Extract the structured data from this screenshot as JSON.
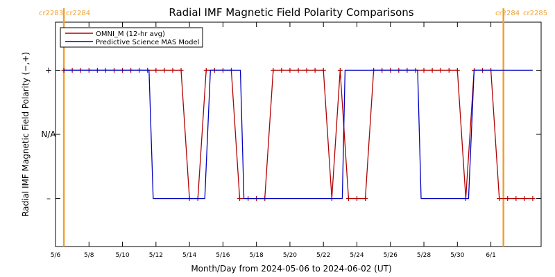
{
  "chart_data": {
    "type": "line",
    "title": "Radial IMF Magnetic Field Polarity Comparisons",
    "xlabel": "Month/Day from 2024-05-06 to 2024-06-02 (UT)",
    "ylabel": "Radial IMF Magnetic Field Polarity (−,+)",
    "x_range": [
      "2024-05-06",
      "2024-06-02"
    ],
    "y_range": [
      -1.75,
      1.75
    ],
    "y_ticks": [
      {
        "value": 1,
        "label": "+"
      },
      {
        "value": 0,
        "label": "N/A"
      },
      {
        "value": -1,
        "label": "–"
      }
    ],
    "x_ticks": [
      {
        "date": "2024-05-06",
        "label": "5/6"
      },
      {
        "date": "2024-05-08",
        "label": "5/8"
      },
      {
        "date": "2024-05-10",
        "label": "5/10"
      },
      {
        "date": "2024-05-12",
        "label": "5/12"
      },
      {
        "date": "2024-05-14",
        "label": "5/14"
      },
      {
        "date": "2024-05-16",
        "label": "5/16"
      },
      {
        "date": "2024-05-18",
        "label": "5/18"
      },
      {
        "date": "2024-05-20",
        "label": "5/20"
      },
      {
        "date": "2024-05-22",
        "label": "5/22"
      },
      {
        "date": "2024-05-24",
        "label": "5/24"
      },
      {
        "date": "2024-05-26",
        "label": "5/26"
      },
      {
        "date": "2024-05-28",
        "label": "5/28"
      },
      {
        "date": "2024-05-30",
        "label": "5/30"
      },
      {
        "date": "2024-06-01",
        "label": "6/1"
      }
    ],
    "carrington_markers": [
      {
        "date": "2024-05-06T12:00",
        "left_label": "cr2283",
        "right_label": "cr2284",
        "label_position": "top-left"
      },
      {
        "date": "2024-06-01T18:00",
        "left_label": "cr2284",
        "right_label": "cr2285",
        "label_position": "top-right"
      }
    ],
    "legend": {
      "position": "top-left"
    },
    "series": [
      {
        "name": "OMNI_M (12-hr avg)",
        "color": "#b00000",
        "marker": "plus",
        "points": [
          [
            "2024-05-06T12:00",
            1
          ],
          [
            "2024-05-07T00:00",
            1
          ],
          [
            "2024-05-07T12:00",
            1
          ],
          [
            "2024-05-08T00:00",
            1
          ],
          [
            "2024-05-08T12:00",
            1
          ],
          [
            "2024-05-09T00:00",
            1
          ],
          [
            "2024-05-09T12:00",
            1
          ],
          [
            "2024-05-10T00:00",
            1
          ],
          [
            "2024-05-10T12:00",
            1
          ],
          [
            "2024-05-11T00:00",
            1
          ],
          [
            "2024-05-11T12:00",
            1
          ],
          [
            "2024-05-12T00:00",
            1
          ],
          [
            "2024-05-12T12:00",
            1
          ],
          [
            "2024-05-13T00:00",
            1
          ],
          [
            "2024-05-13T12:00",
            1
          ],
          [
            "2024-05-14T00:00",
            -1
          ],
          [
            "2024-05-14T12:00",
            -1
          ],
          [
            "2024-05-15T00:00",
            1
          ],
          [
            "2024-05-15T12:00",
            1
          ],
          [
            "2024-05-16T00:00",
            1
          ],
          [
            "2024-05-16T12:00",
            1
          ],
          [
            "2024-05-17T00:00",
            -1
          ],
          [
            "2024-05-17T12:00",
            -1
          ],
          [
            "2024-05-18T00:00",
            -1
          ],
          [
            "2024-05-18T12:00",
            -1
          ],
          [
            "2024-05-19T00:00",
            1
          ],
          [
            "2024-05-19T12:00",
            1
          ],
          [
            "2024-05-20T00:00",
            1
          ],
          [
            "2024-05-20T12:00",
            1
          ],
          [
            "2024-05-21T00:00",
            1
          ],
          [
            "2024-05-21T12:00",
            1
          ],
          [
            "2024-05-22T00:00",
            1
          ],
          [
            "2024-05-22T12:00",
            -1
          ],
          [
            "2024-05-23T00:00",
            1
          ],
          [
            "2024-05-23T12:00",
            -1
          ],
          [
            "2024-05-24T00:00",
            -1
          ],
          [
            "2024-05-24T12:00",
            -1
          ],
          [
            "2024-05-25T00:00",
            1
          ],
          [
            "2024-05-25T12:00",
            1
          ],
          [
            "2024-05-26T00:00",
            1
          ],
          [
            "2024-05-26T12:00",
            1
          ],
          [
            "2024-05-27T00:00",
            1
          ],
          [
            "2024-05-27T12:00",
            1
          ],
          [
            "2024-05-28T00:00",
            1
          ],
          [
            "2024-05-28T12:00",
            1
          ],
          [
            "2024-05-29T00:00",
            1
          ],
          [
            "2024-05-29T12:00",
            1
          ],
          [
            "2024-05-30T00:00",
            1
          ],
          [
            "2024-05-30T12:00",
            -1
          ],
          [
            "2024-05-31T00:00",
            1
          ],
          [
            "2024-05-31T12:00",
            1
          ],
          [
            "2024-06-01T00:00",
            1
          ],
          [
            "2024-06-01T12:00",
            -1
          ],
          [
            "2024-06-02T00:00",
            -1
          ],
          [
            "2024-06-02T12:00",
            -1
          ],
          [
            "2024-06-03T00:00",
            -1
          ],
          [
            "2024-06-03T12:00",
            -1
          ]
        ]
      },
      {
        "name": "Predictive Science MAS Model",
        "color": "#0000c0",
        "marker": "none",
        "points": [
          [
            "2024-05-06T12:00",
            1
          ],
          [
            "2024-05-11T14:00",
            1
          ],
          [
            "2024-05-11T20:00",
            -1
          ],
          [
            "2024-05-14T22:00",
            -1
          ],
          [
            "2024-05-15T06:00",
            1
          ],
          [
            "2024-05-17T01:00",
            1
          ],
          [
            "2024-05-17T06:00",
            -1
          ],
          [
            "2024-05-23T03:00",
            -1
          ],
          [
            "2024-05-23T07:00",
            1
          ],
          [
            "2024-05-27T15:00",
            1
          ],
          [
            "2024-05-27T20:00",
            -1
          ],
          [
            "2024-05-30T16:00",
            -1
          ],
          [
            "2024-05-31T00:00",
            1
          ],
          [
            "2024-06-03T12:00",
            1
          ]
        ]
      }
    ]
  }
}
